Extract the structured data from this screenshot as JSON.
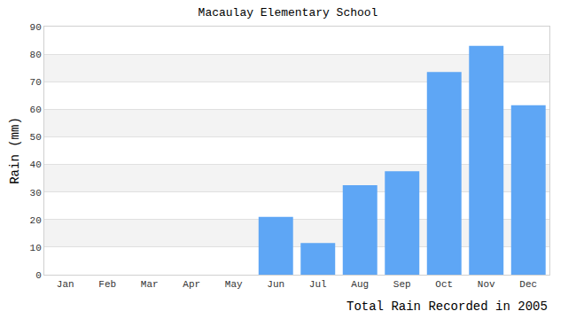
{
  "chart_data": {
    "type": "bar",
    "title": "Macaulay Elementary School",
    "xlabel": "Total Rain Recorded in 2005",
    "ylabel": "Rain (mm)",
    "categories": [
      "Jan",
      "Feb",
      "Mar",
      "Apr",
      "May",
      "Jun",
      "Jul",
      "Aug",
      "Sep",
      "Oct",
      "Nov",
      "Dec"
    ],
    "values": [
      0,
      0,
      0,
      0,
      0,
      21,
      11.5,
      32.5,
      37.5,
      73.5,
      83,
      61.5
    ],
    "color": "#5ea6f5",
    "ylim": [
      0,
      90
    ],
    "yticks": [
      0,
      10,
      20,
      30,
      40,
      50,
      60,
      70,
      80,
      90
    ],
    "grid": true
  }
}
